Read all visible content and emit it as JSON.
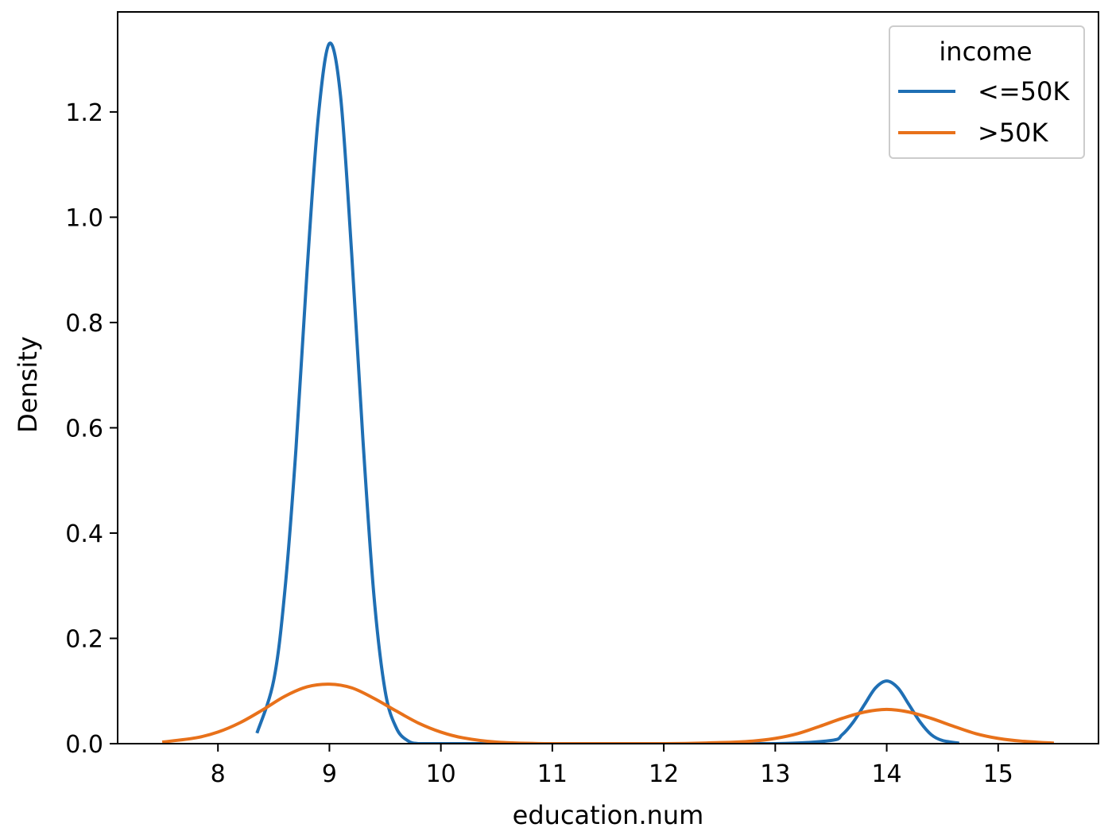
{
  "chart_data": {
    "type": "line",
    "xlabel": "education.num",
    "ylabel": "Density",
    "xlim": [
      7.1,
      15.9
    ],
    "ylim": [
      0,
      1.39
    ],
    "x_ticks": [
      8,
      9,
      10,
      11,
      12,
      13,
      14,
      15
    ],
    "y_ticks": [
      0.0,
      0.2,
      0.4,
      0.6,
      0.8,
      1.0,
      1.2
    ],
    "legend": {
      "title": "income",
      "placement": "top-right"
    },
    "grid": false,
    "series": [
      {
        "name": "<=50K",
        "color": "#1f6fb4",
        "x": [
          8.35,
          8.5,
          8.6,
          8.7,
          8.8,
          8.9,
          9.0,
          9.1,
          9.2,
          9.3,
          9.4,
          9.5,
          9.6,
          9.7,
          9.8,
          10.0,
          11.0,
          12.0,
          13.0,
          13.5,
          13.6,
          13.7,
          13.8,
          13.9,
          14.0,
          14.1,
          14.2,
          14.3,
          14.4,
          14.5,
          14.65
        ],
        "values": [
          0.02,
          0.12,
          0.29,
          0.56,
          0.9,
          1.19,
          1.33,
          1.23,
          0.93,
          0.58,
          0.28,
          0.1,
          0.03,
          0.006,
          0.0,
          0.0,
          0.0,
          0.0,
          0.0,
          0.006,
          0.017,
          0.041,
          0.074,
          0.106,
          0.119,
          0.106,
          0.074,
          0.041,
          0.017,
          0.006,
          0.001
        ]
      },
      {
        "name": ">50K",
        "color": "#e8711a",
        "x": [
          7.5,
          7.8,
          8.0,
          8.2,
          8.4,
          8.6,
          8.8,
          9.0,
          9.2,
          9.4,
          9.6,
          9.8,
          10.0,
          10.2,
          10.5,
          11.0,
          12.0,
          12.5,
          12.8,
          13.0,
          13.2,
          13.4,
          13.6,
          13.8,
          14.0,
          14.2,
          14.4,
          14.6,
          14.8,
          15.0,
          15.2,
          15.5
        ],
        "values": [
          0.003,
          0.011,
          0.022,
          0.04,
          0.064,
          0.09,
          0.108,
          0.113,
          0.106,
          0.086,
          0.062,
          0.039,
          0.022,
          0.011,
          0.003,
          0.0,
          0.0,
          0.002,
          0.005,
          0.01,
          0.019,
          0.033,
          0.048,
          0.06,
          0.065,
          0.06,
          0.048,
          0.033,
          0.019,
          0.01,
          0.005,
          0.001
        ]
      }
    ]
  }
}
